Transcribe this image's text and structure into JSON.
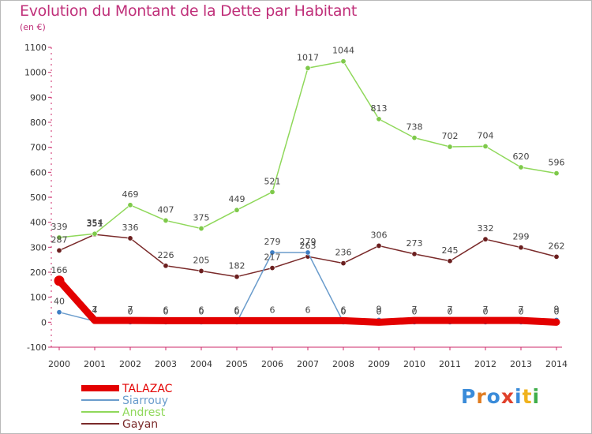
{
  "title": "Evolution du Montant de la Dette par Habitant",
  "subtitle": "(en €)",
  "logo": {
    "text": "Proxiti",
    "colors": [
      "#3a8bd9",
      "#e07b1f",
      "#3a8bd9",
      "#e0402a",
      "#3a8bd9",
      "#f0b21d",
      "#3fae49"
    ]
  },
  "chart_data": {
    "type": "line",
    "x": [
      "2000",
      "2001",
      "2002",
      "2003",
      "2004",
      "2005",
      "2006",
      "2007",
      "2008",
      "2009",
      "2010",
      "2011",
      "2012",
      "2013",
      "2014"
    ],
    "ylim": [
      -100,
      1100
    ],
    "yticks": [
      "-100",
      "0",
      "100",
      "200",
      "300",
      "400",
      "500",
      "600",
      "700",
      "800",
      "900",
      "1000",
      "1100"
    ],
    "grid": false,
    "legend_position": "bottom-left",
    "series": [
      {
        "name": "TALAZAC",
        "color": "#e30000",
        "width": 9,
        "values": [
          166,
          7,
          7,
          6,
          6,
          6,
          6,
          6,
          6,
          0,
          7,
          7,
          7,
          7,
          0
        ],
        "labels": [
          "166",
          "7",
          "7",
          "6",
          "6",
          "6",
          "6",
          "6",
          "6",
          "0",
          "7",
          "7",
          "7",
          "7",
          "0"
        ]
      },
      {
        "name": "Siarrouy",
        "color": "#6a9ccc",
        "width": 1.5,
        "marker": "#3f7fc4",
        "values": [
          40,
          4,
          0,
          0,
          0,
          0,
          279,
          279,
          0,
          9,
          0,
          0,
          0,
          0,
          9
        ],
        "labels": [
          "40",
          "4",
          "0",
          "0",
          "0",
          "0",
          "279",
          "279",
          "0",
          "9",
          "0",
          "0",
          "0",
          "0",
          "9"
        ]
      },
      {
        "name": "Andrest",
        "color": "#8fd85a",
        "width": 1.5,
        "marker": "#7ec94a",
        "values": [
          339,
          354,
          469,
          407,
          375,
          449,
          521,
          1017,
          1044,
          813,
          738,
          702,
          704,
          620,
          596
        ],
        "labels": [
          "339",
          "354",
          "469",
          "407",
          "375",
          "449",
          "521",
          "1017",
          "1044",
          "813",
          "738",
          "702",
          "704",
          "620",
          "596"
        ]
      },
      {
        "name": "Gayan",
        "color": "#7a2a2a",
        "width": 1.5,
        "marker": "#6b1f1f",
        "values": [
          287,
          351,
          336,
          226,
          205,
          182,
          217,
          263,
          236,
          306,
          273,
          245,
          332,
          299,
          262
        ],
        "labels": [
          "287",
          "351",
          "336",
          "226",
          "205",
          "182",
          "217",
          "263",
          "236",
          "306",
          "273",
          "245",
          "332",
          "299",
          "262"
        ]
      }
    ]
  }
}
